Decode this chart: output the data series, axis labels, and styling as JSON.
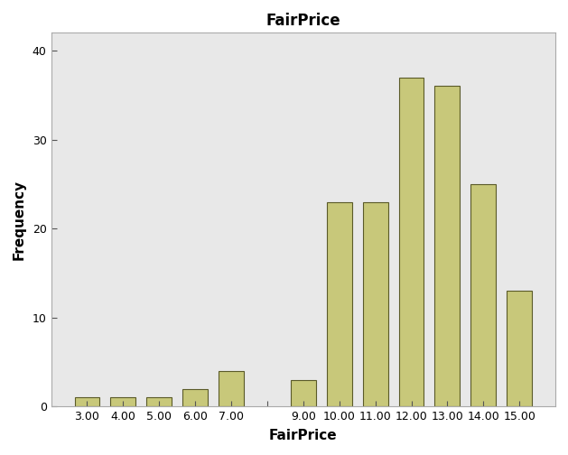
{
  "title": "FairPrice",
  "xlabel": "FairPrice",
  "ylabel": "Frequency",
  "bar_centers": [
    3.0,
    4.0,
    5.0,
    6.0,
    7.0,
    9.0,
    10.0,
    11.0,
    12.0,
    13.0,
    14.0,
    15.0
  ],
  "bar_heights": [
    1,
    1,
    1,
    2,
    4,
    3,
    23,
    23,
    37,
    36,
    25,
    13
  ],
  "bar_color": "#C8C87A",
  "bar_edge_color": "#5A5A28",
  "bar_width": 0.7,
  "xlim": [
    2.0,
    16.0
  ],
  "ylim": [
    0,
    42
  ],
  "xtick_positions": [
    3.0,
    4.0,
    5.0,
    6.0,
    7.0,
    8.0,
    9.0,
    10.0,
    11.0,
    12.0,
    13.0,
    14.0,
    15.0
  ],
  "xtick_labels": [
    "3.00",
    "4.00",
    "5.00",
    "6.00",
    "7.00",
    "",
    "9.00",
    "10.00",
    "11.00",
    "12.00",
    "13.00",
    "14.00",
    "15.00"
  ],
  "ytick_values": [
    0,
    10,
    20,
    30,
    40
  ],
  "bg_color": "#E8E8E8",
  "fig_bg_color": "#FFFFFF",
  "title_fontsize": 12,
  "label_fontsize": 11,
  "tick_fontsize": 9
}
